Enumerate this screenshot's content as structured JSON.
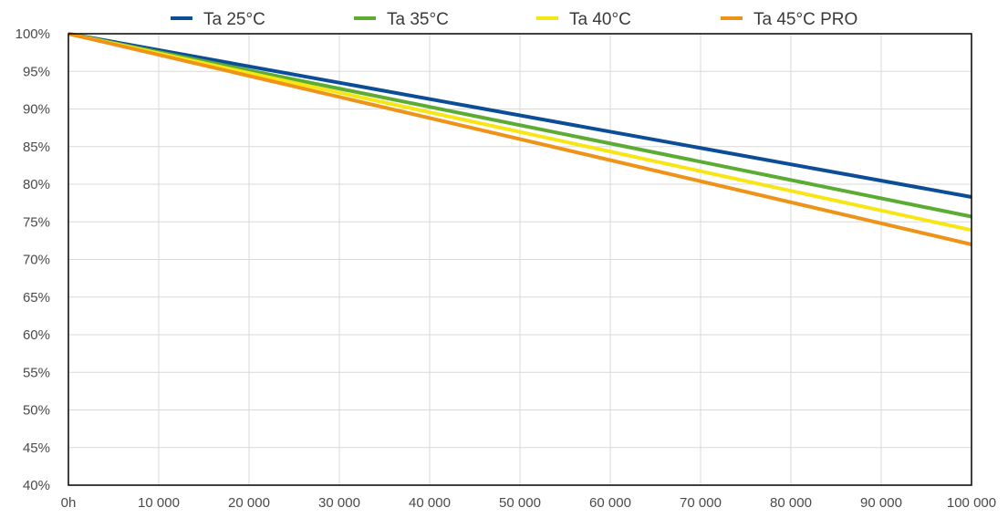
{
  "chart_data": {
    "type": "line",
    "title": "",
    "xlabel": "",
    "ylabel": "",
    "xlim": [
      0,
      100000
    ],
    "ylim": [
      40,
      100
    ],
    "x_ticks": [
      0,
      10000,
      20000,
      30000,
      40000,
      50000,
      60000,
      70000,
      80000,
      90000,
      100000
    ],
    "x_tick_labels": [
      "0h",
      "10 000",
      "20 000",
      "30 000",
      "40 000",
      "50 000",
      "60 000",
      "70 000",
      "80 000",
      "90 000",
      "100 000"
    ],
    "y_ticks": [
      40,
      45,
      50,
      55,
      60,
      65,
      70,
      75,
      80,
      85,
      90,
      95,
      100
    ],
    "y_tick_labels": [
      "40%",
      "45%",
      "50%",
      "55%",
      "60%",
      "65%",
      "70%",
      "75%",
      "80%",
      "85%",
      "90%",
      "95%",
      "100%"
    ],
    "grid": true,
    "legend_position": "top",
    "series": [
      {
        "name": "Ta 25°C",
        "color": "#0b4d96",
        "x": [
          0,
          100000
        ],
        "y": [
          100,
          78.3
        ]
      },
      {
        "name": "Ta 35°C",
        "color": "#5cac33",
        "x": [
          0,
          100000
        ],
        "y": [
          100,
          75.7
        ]
      },
      {
        "name": "Ta 40°C",
        "color": "#f7e614",
        "x": [
          0,
          100000
        ],
        "y": [
          100,
          73.9
        ]
      },
      {
        "name": "Ta 45°C PRO",
        "color": "#ef9218",
        "x": [
          0,
          100000
        ],
        "y": [
          100,
          72.0
        ]
      }
    ]
  }
}
